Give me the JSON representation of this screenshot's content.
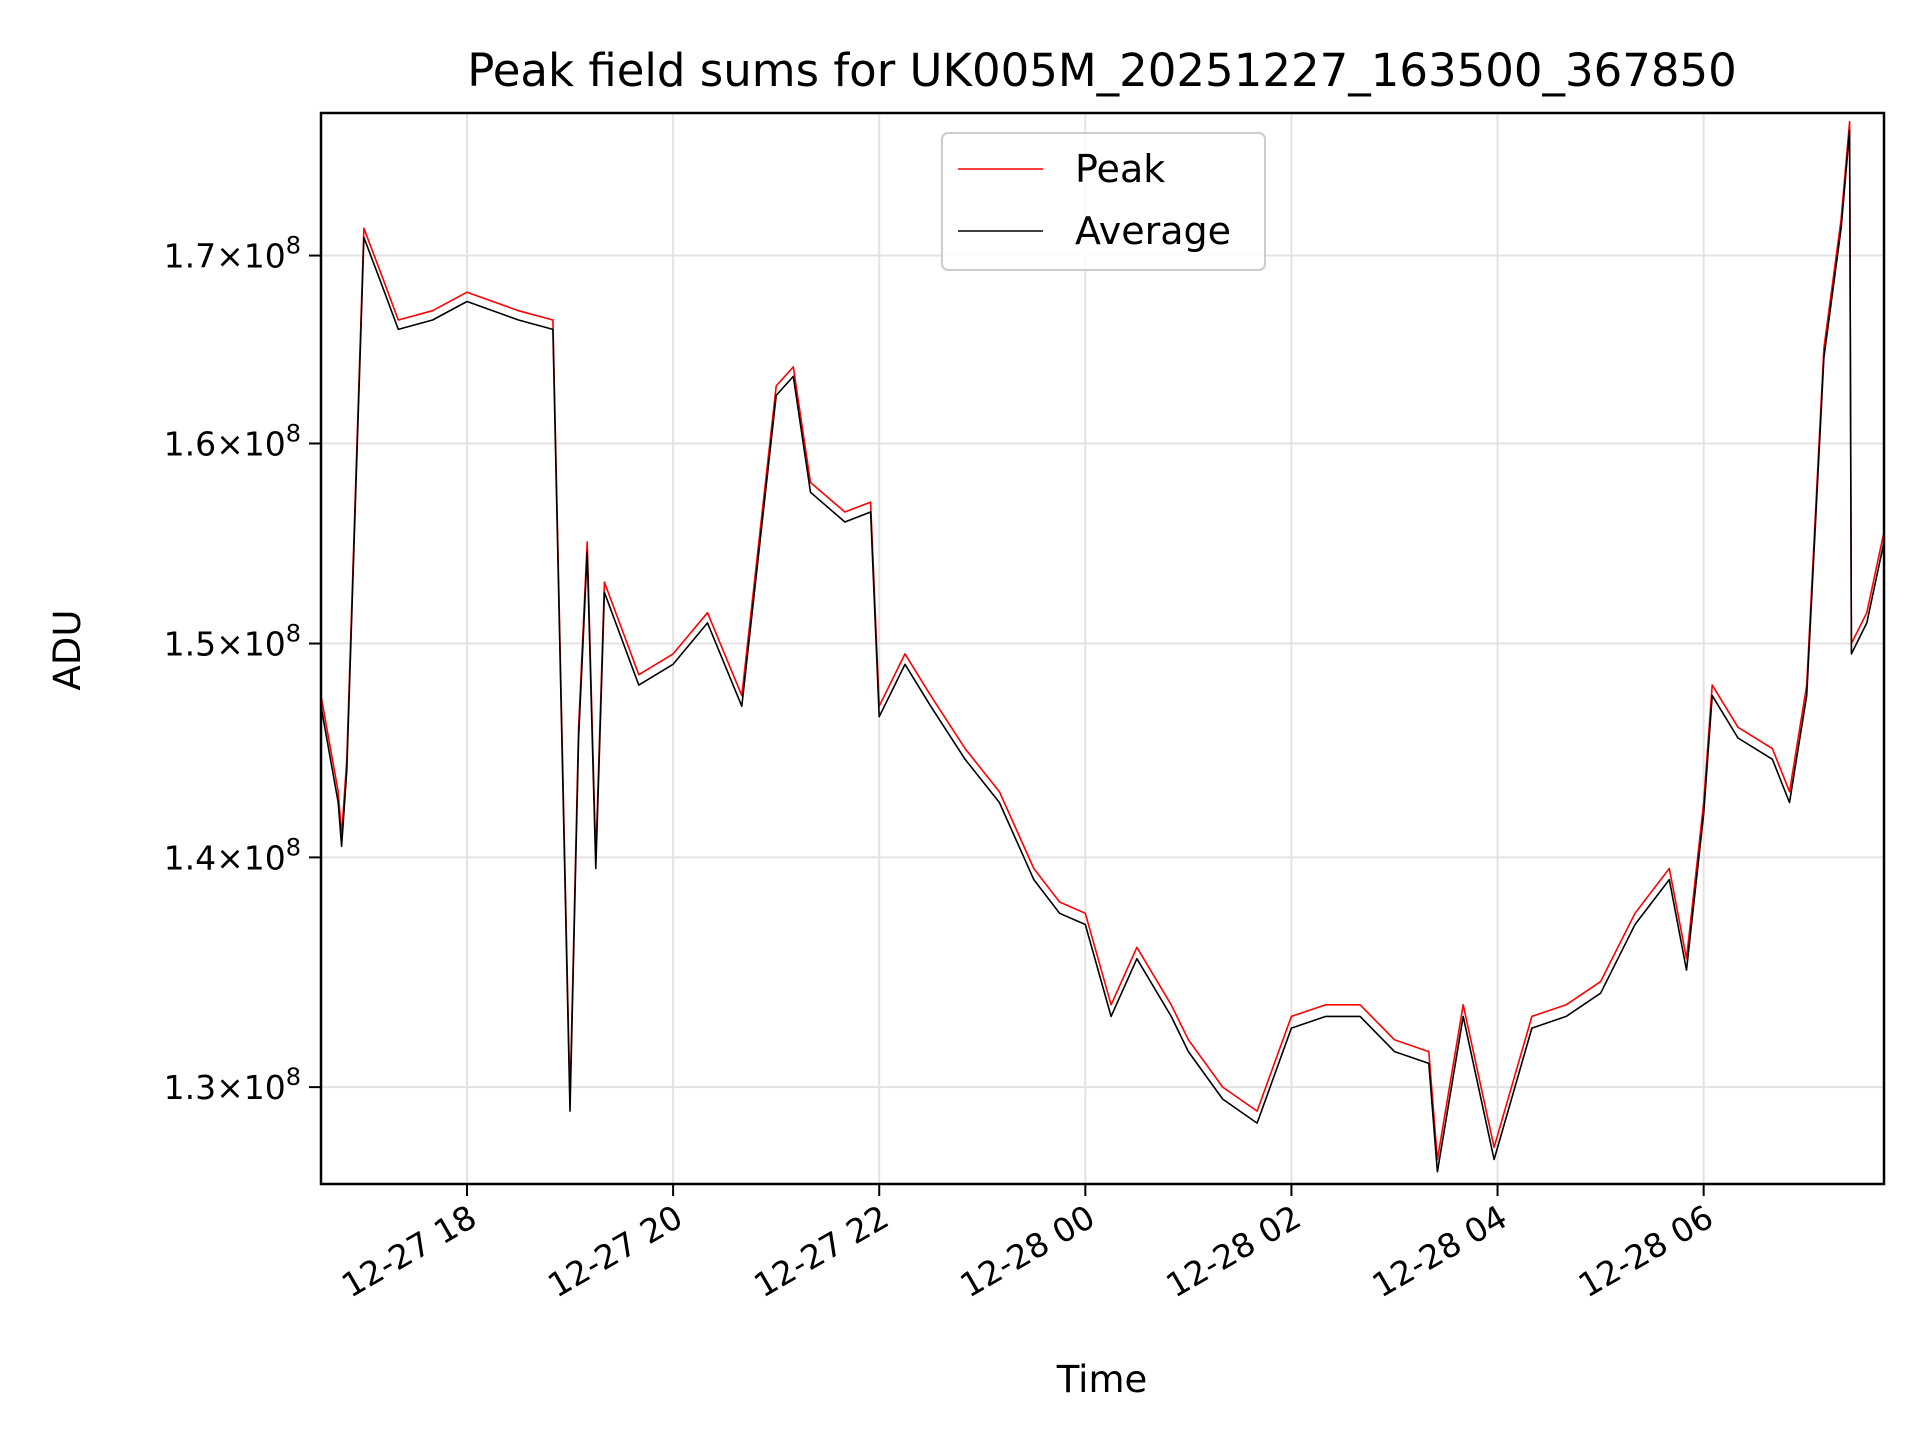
{
  "chart_data": {
    "type": "line",
    "title": "Peak field sums for UK005M_20251227_163500_367850",
    "xlabel": "Time",
    "ylabel": "ADU",
    "y_scale": "log",
    "grid": true,
    "legend_position": "upper-center",
    "xlim": [
      "2025-12-27 16:35",
      "2025-12-28 07:45"
    ],
    "ylim": [
      126000000,
      178000000
    ],
    "x_ticks": [
      "2025-12-27 18:00",
      "2025-12-27 20:00",
      "2025-12-27 22:00",
      "2025-12-28 00:00",
      "2025-12-28 02:00",
      "2025-12-28 04:00",
      "2025-12-28 06:00"
    ],
    "x_tick_labels": [
      "12-27 18",
      "12-27 20",
      "12-27 22",
      "12-28 00",
      "12-28 02",
      "12-28 04",
      "12-28 06"
    ],
    "y_ticks": [
      130000000,
      140000000,
      150000000,
      160000000,
      170000000
    ],
    "y_tick_labels": [
      {
        "base": "1.3",
        "exp": "8"
      },
      {
        "base": "1.4",
        "exp": "8"
      },
      {
        "base": "1.5",
        "exp": "8"
      },
      {
        "base": "1.6",
        "exp": "8"
      },
      {
        "base": "1.7",
        "exp": "8"
      }
    ],
    "series": [
      {
        "name": "Peak",
        "color": "#ff0000",
        "x": [
          "2025-12-27 16:35",
          "2025-12-27 16:45",
          "2025-12-27 16:47",
          "2025-12-27 16:50",
          "2025-12-27 17:00",
          "2025-12-27 17:10",
          "2025-12-27 17:20",
          "2025-12-27 17:40",
          "2025-12-27 18:00",
          "2025-12-27 18:30",
          "2025-12-27 18:50",
          "2025-12-27 19:00",
          "2025-12-27 19:05",
          "2025-12-27 19:10",
          "2025-12-27 19:15",
          "2025-12-27 19:20",
          "2025-12-27 19:40",
          "2025-12-27 20:00",
          "2025-12-27 20:20",
          "2025-12-27 20:40",
          "2025-12-27 21:00",
          "2025-12-27 21:10",
          "2025-12-27 21:20",
          "2025-12-27 21:40",
          "2025-12-27 21:55",
          "2025-12-27 22:00",
          "2025-12-27 22:15",
          "2025-12-27 22:30",
          "2025-12-27 22:50",
          "2025-12-27 23:10",
          "2025-12-27 23:30",
          "2025-12-27 23:45",
          "2025-12-28 00:00",
          "2025-12-28 00:15",
          "2025-12-28 00:30",
          "2025-12-28 00:50",
          "2025-12-28 01:00",
          "2025-12-28 01:20",
          "2025-12-28 01:40",
          "2025-12-28 02:00",
          "2025-12-28 02:20",
          "2025-12-28 02:40",
          "2025-12-28 03:00",
          "2025-12-28 03:20",
          "2025-12-28 03:25",
          "2025-12-28 03:40",
          "2025-12-28 03:58",
          "2025-12-28 04:20",
          "2025-12-28 04:40",
          "2025-12-28 05:00",
          "2025-12-28 05:20",
          "2025-12-28 05:40",
          "2025-12-28 05:50",
          "2025-12-28 06:00",
          "2025-12-28 06:05",
          "2025-12-28 06:20",
          "2025-12-28 06:40",
          "2025-12-28 06:50",
          "2025-12-28 07:00",
          "2025-12-28 07:10",
          "2025-12-28 07:20",
          "2025-12-28 07:25",
          "2025-12-28 07:26",
          "2025-12-28 07:35",
          "2025-12-28 07:45"
        ],
        "values": [
          147500000,
          143000000,
          141000000,
          144500000,
          171500000,
          169000000,
          166500000,
          167000000,
          168000000,
          167000000,
          166500000,
          129500000,
          146000000,
          155000000,
          140000000,
          153000000,
          148500000,
          149500000,
          151500000,
          147500000,
          163000000,
          164000000,
          158000000,
          156500000,
          157000000,
          147000000,
          149500000,
          147500000,
          145000000,
          143000000,
          139500000,
          138000000,
          137500000,
          133500000,
          136000000,
          133500000,
          132000000,
          130000000,
          129000000,
          133000000,
          133500000,
          133500000,
          132000000,
          131500000,
          127000000,
          133500000,
          127500000,
          133000000,
          133500000,
          134500000,
          137500000,
          139500000,
          135500000,
          142500000,
          148000000,
          146000000,
          145000000,
          143000000,
          148000000,
          165000000,
          172000000,
          177500000,
          150000000,
          151500000,
          155500000
        ]
      },
      {
        "name": "Average",
        "color": "#000000",
        "x": [
          "2025-12-27 16:35",
          "2025-12-27 16:45",
          "2025-12-27 16:47",
          "2025-12-27 16:50",
          "2025-12-27 17:00",
          "2025-12-27 17:10",
          "2025-12-27 17:20",
          "2025-12-27 17:40",
          "2025-12-27 18:00",
          "2025-12-27 18:30",
          "2025-12-27 18:50",
          "2025-12-27 19:00",
          "2025-12-27 19:05",
          "2025-12-27 19:10",
          "2025-12-27 19:15",
          "2025-12-27 19:20",
          "2025-12-27 19:40",
          "2025-12-27 20:00",
          "2025-12-27 20:20",
          "2025-12-27 20:40",
          "2025-12-27 21:00",
          "2025-12-27 21:10",
          "2025-12-27 21:20",
          "2025-12-27 21:40",
          "2025-12-27 21:55",
          "2025-12-27 22:00",
          "2025-12-27 22:15",
          "2025-12-27 22:30",
          "2025-12-27 22:50",
          "2025-12-27 23:10",
          "2025-12-27 23:30",
          "2025-12-27 23:45",
          "2025-12-28 00:00",
          "2025-12-28 00:15",
          "2025-12-28 00:30",
          "2025-12-28 00:50",
          "2025-12-28 01:00",
          "2025-12-28 01:20",
          "2025-12-28 01:40",
          "2025-12-28 02:00",
          "2025-12-28 02:20",
          "2025-12-28 02:40",
          "2025-12-28 03:00",
          "2025-12-28 03:20",
          "2025-12-28 03:25",
          "2025-12-28 03:40",
          "2025-12-28 03:58",
          "2025-12-28 04:20",
          "2025-12-28 04:40",
          "2025-12-28 05:00",
          "2025-12-28 05:20",
          "2025-12-28 05:40",
          "2025-12-28 05:50",
          "2025-12-28 06:00",
          "2025-12-28 06:05",
          "2025-12-28 06:20",
          "2025-12-28 06:40",
          "2025-12-28 06:50",
          "2025-12-28 07:00",
          "2025-12-28 07:10",
          "2025-12-28 07:20",
          "2025-12-28 07:25",
          "2025-12-28 07:26",
          "2025-12-28 07:35",
          "2025-12-28 07:45"
        ],
        "values": [
          147000000,
          142500000,
          140500000,
          144000000,
          171000000,
          168500000,
          166000000,
          166500000,
          167500000,
          166500000,
          166000000,
          129000000,
          145500000,
          154500000,
          139500000,
          152500000,
          148000000,
          149000000,
          151000000,
          147000000,
          162500000,
          163500000,
          157500000,
          156000000,
          156500000,
          146500000,
          149000000,
          147000000,
          144500000,
          142500000,
          139000000,
          137500000,
          137000000,
          133000000,
          135500000,
          133000000,
          131500000,
          129500000,
          128500000,
          132500000,
          133000000,
          133000000,
          131500000,
          131000000,
          126500000,
          133000000,
          127000000,
          132500000,
          133000000,
          134000000,
          137000000,
          139000000,
          135000000,
          142000000,
          147500000,
          145500000,
          144500000,
          142500000,
          147500000,
          164500000,
          171500000,
          177000000,
          149500000,
          151000000,
          155000000
        ]
      }
    ]
  }
}
